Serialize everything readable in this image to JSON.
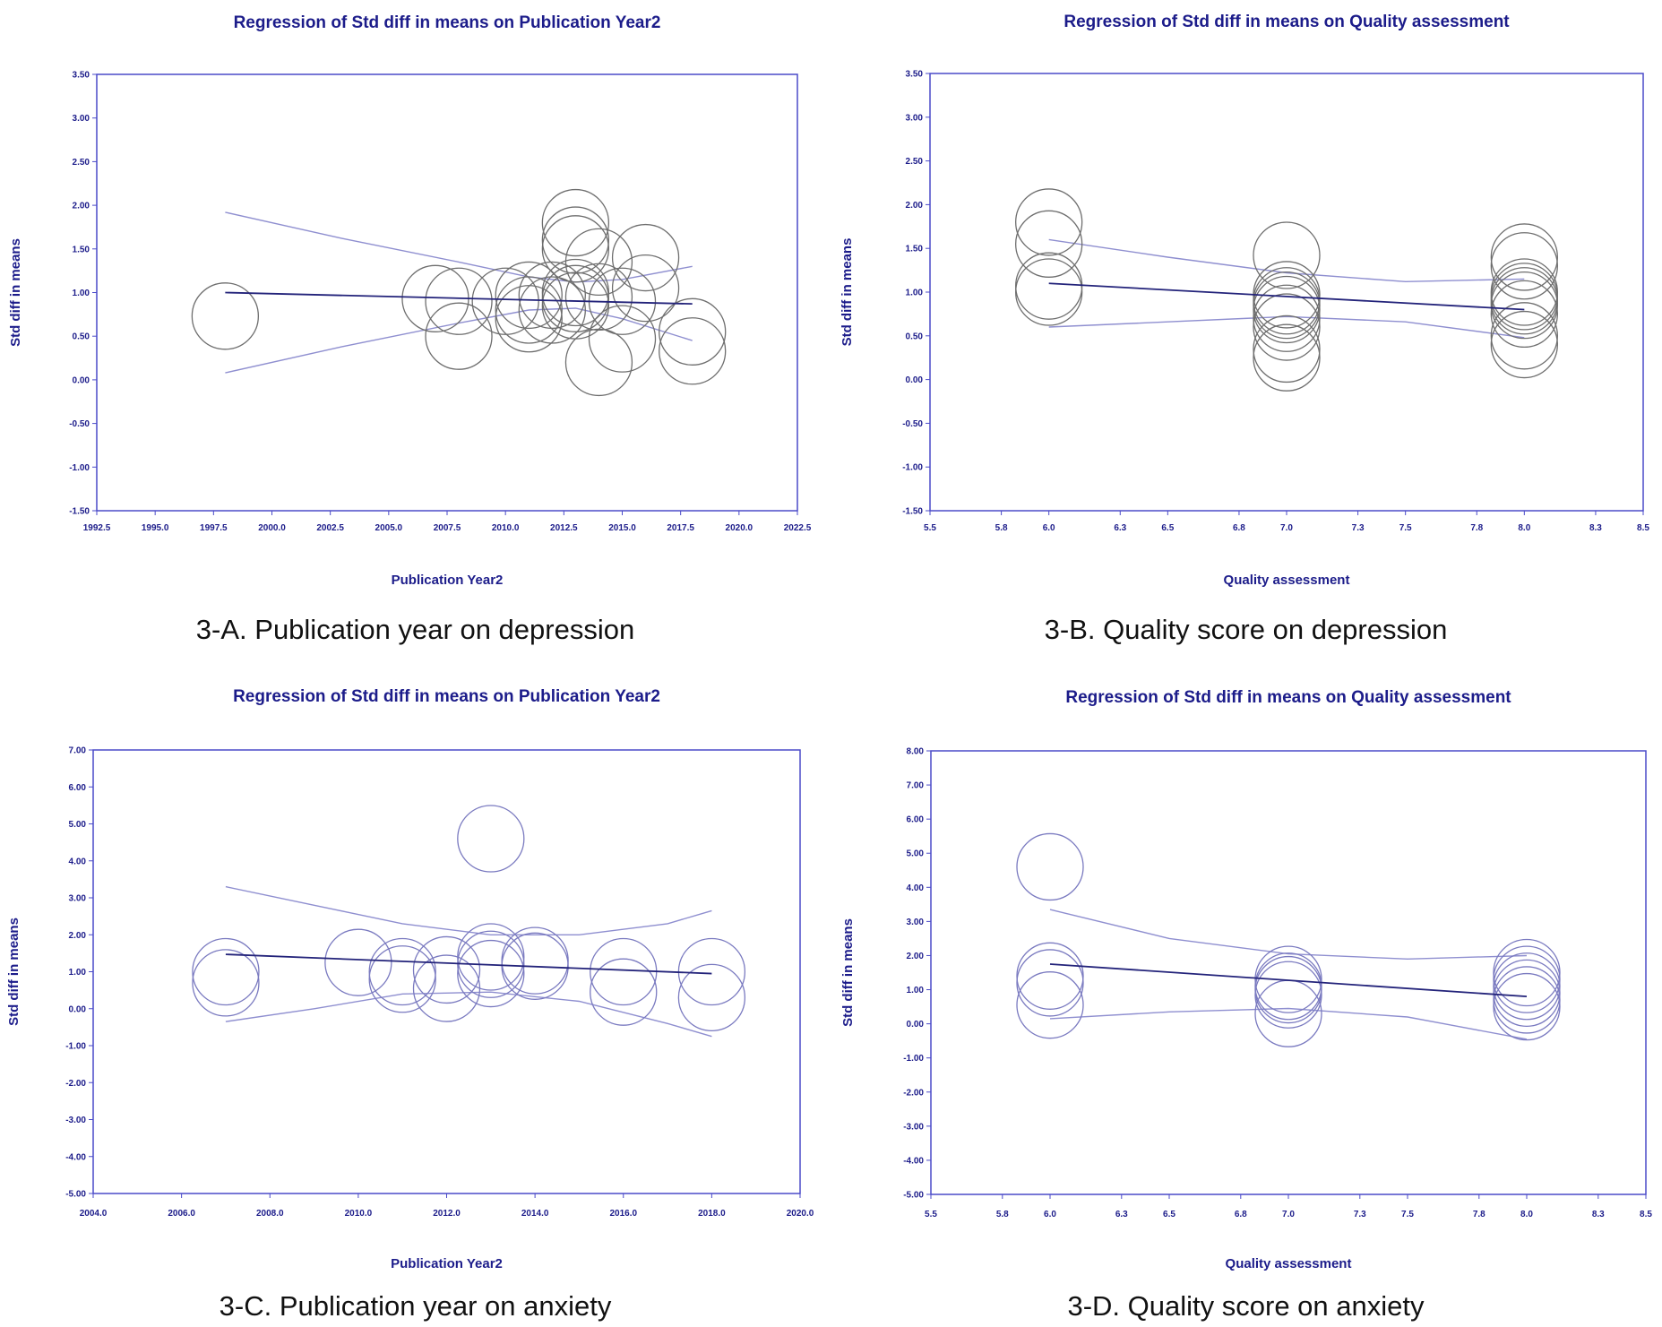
{
  "colors": {
    "axis": "#4a4ac8",
    "text": "#1c1c8a",
    "regression_line": "#23237a",
    "ci_line": "#8f8fd0",
    "bubble_gray": "#6e6e6e",
    "bubble_blue": "#7a7ac0"
  },
  "captions": [
    "3-A. Publication year on depression",
    "3-B. Quality score on depression",
    "3-C. Publication year on anxiety",
    "3-D. Quality score on anxiety"
  ],
  "chart_data": [
    {
      "type": "scatter",
      "title": "Regression of Std diff in means on Publication Year2",
      "xlabel": "Publication Year2",
      "ylabel": "Std diff in means",
      "xlim": [
        1992.5,
        2022.5
      ],
      "ylim": [
        -1.5,
        3.5
      ],
      "xticks": [
        "1992.5",
        "1995.0",
        "1997.5",
        "2000.0",
        "2002.5",
        "2005.0",
        "2007.5",
        "2010.0",
        "2012.5",
        "2015.0",
        "2017.5",
        "2020.0",
        "2022.5"
      ],
      "yticks": [
        "3.50",
        "3.00",
        "2.50",
        "2.00",
        "1.50",
        "1.00",
        "0.50",
        "0.00",
        "-0.50",
        "-1.00",
        "-1.50"
      ],
      "bubble_style": "gray",
      "points": [
        {
          "x": 1998,
          "y": 0.73
        },
        {
          "x": 2007,
          "y": 0.93
        },
        {
          "x": 2008,
          "y": 0.9
        },
        {
          "x": 2008,
          "y": 0.5
        },
        {
          "x": 2010,
          "y": 0.9
        },
        {
          "x": 2011,
          "y": 0.97
        },
        {
          "x": 2011,
          "y": 0.8
        },
        {
          "x": 2011,
          "y": 0.7
        },
        {
          "x": 2012,
          "y": 0.97
        },
        {
          "x": 2012,
          "y": 0.8
        },
        {
          "x": 2013,
          "y": 1.8
        },
        {
          "x": 2013,
          "y": 1.6
        },
        {
          "x": 2013,
          "y": 1.5
        },
        {
          "x": 2013,
          "y": 1.0
        },
        {
          "x": 2013,
          "y": 0.93
        },
        {
          "x": 2013,
          "y": 0.85
        },
        {
          "x": 2014,
          "y": 1.35
        },
        {
          "x": 2014,
          "y": 0.95
        },
        {
          "x": 2014,
          "y": 0.2
        },
        {
          "x": 2015,
          "y": 0.9
        },
        {
          "x": 2015,
          "y": 0.47
        },
        {
          "x": 2016,
          "y": 1.4
        },
        {
          "x": 2016,
          "y": 1.05
        },
        {
          "x": 2018,
          "y": 0.55
        },
        {
          "x": 2018,
          "y": 0.33
        }
      ],
      "regression": {
        "x": [
          1998,
          2018
        ],
        "y": [
          1.0,
          0.87
        ]
      },
      "ci_upper": {
        "x": [
          1998,
          2003,
          2008,
          2011,
          2013,
          2015,
          2018
        ],
        "y": [
          1.92,
          1.62,
          1.35,
          1.18,
          1.12,
          1.15,
          1.3
        ]
      },
      "ci_lower": {
        "x": [
          1998,
          2003,
          2008,
          2011,
          2013,
          2015,
          2018
        ],
        "y": [
          0.08,
          0.38,
          0.65,
          0.8,
          0.82,
          0.7,
          0.45
        ]
      }
    },
    {
      "type": "scatter",
      "title": "Regression of Std diff in means on Quality assessment",
      "xlabel": "Quality assessment",
      "ylabel": "Std diff in means",
      "xlim": [
        5.5,
        8.5
      ],
      "ylim": [
        -1.5,
        3.5
      ],
      "xticks": [
        "5.5",
        "5.8",
        "6.0",
        "6.3",
        "6.5",
        "6.8",
        "7.0",
        "7.3",
        "7.5",
        "7.8",
        "8.0",
        "8.3",
        "8.5"
      ],
      "yticks": [
        "3.50",
        "3.00",
        "2.50",
        "2.00",
        "1.50",
        "1.00",
        "0.50",
        "0.00",
        "-0.50",
        "-1.00",
        "-1.50"
      ],
      "bubble_style": "gray",
      "points": [
        {
          "x": 6.0,
          "y": 1.8
        },
        {
          "x": 6.0,
          "y": 1.55
        },
        {
          "x": 6.0,
          "y": 1.07
        },
        {
          "x": 6.0,
          "y": 1.0
        },
        {
          "x": 7.0,
          "y": 1.42
        },
        {
          "x": 7.0,
          "y": 0.97
        },
        {
          "x": 7.0,
          "y": 0.9
        },
        {
          "x": 7.0,
          "y": 0.85
        },
        {
          "x": 7.0,
          "y": 0.8
        },
        {
          "x": 7.0,
          "y": 0.7
        },
        {
          "x": 7.0,
          "y": 0.6
        },
        {
          "x": 7.0,
          "y": 0.35
        },
        {
          "x": 7.0,
          "y": 0.25
        },
        {
          "x": 8.0,
          "y": 1.4
        },
        {
          "x": 8.0,
          "y": 1.3
        },
        {
          "x": 8.0,
          "y": 1.0
        },
        {
          "x": 8.0,
          "y": 0.95
        },
        {
          "x": 8.0,
          "y": 0.9
        },
        {
          "x": 8.0,
          "y": 0.85
        },
        {
          "x": 8.0,
          "y": 0.75
        },
        {
          "x": 8.0,
          "y": 0.5
        },
        {
          "x": 8.0,
          "y": 0.4
        }
      ],
      "regression": {
        "x": [
          6.0,
          8.0
        ],
        "y": [
          1.1,
          0.8
        ]
      },
      "ci_upper": {
        "x": [
          6.0,
          6.5,
          7.0,
          7.5,
          8.0
        ],
        "y": [
          1.6,
          1.4,
          1.22,
          1.12,
          1.15
        ]
      },
      "ci_lower": {
        "x": [
          6.0,
          6.5,
          7.0,
          7.5,
          8.0
        ],
        "y": [
          0.6,
          0.66,
          0.72,
          0.66,
          0.48
        ]
      }
    },
    {
      "type": "scatter",
      "title": "Regression of Std diff in means on Publication Year2",
      "xlabel": "Publication Year2",
      "ylabel": "Std diff in means",
      "xlim": [
        2004.0,
        2020.0
      ],
      "ylim": [
        -5.0,
        7.0
      ],
      "xticks": [
        "2004.0",
        "2006.0",
        "2008.0",
        "2010.0",
        "2012.0",
        "2014.0",
        "2016.0",
        "2018.0",
        "2020.0"
      ],
      "yticks": [
        "7.00",
        "6.00",
        "5.00",
        "4.00",
        "3.00",
        "2.00",
        "1.00",
        "0.00",
        "-1.00",
        "-2.00",
        "-3.00",
        "-4.00",
        "-5.00"
      ],
      "bubble_style": "blue",
      "points": [
        {
          "x": 2007,
          "y": 1.0
        },
        {
          "x": 2007,
          "y": 0.7
        },
        {
          "x": 2010,
          "y": 1.25
        },
        {
          "x": 2011,
          "y": 1.0
        },
        {
          "x": 2011,
          "y": 0.8
        },
        {
          "x": 2012,
          "y": 1.05
        },
        {
          "x": 2012,
          "y": 0.55
        },
        {
          "x": 2013,
          "y": 4.6
        },
        {
          "x": 2013,
          "y": 1.4
        },
        {
          "x": 2013,
          "y": 1.2
        },
        {
          "x": 2013,
          "y": 0.95
        },
        {
          "x": 2014,
          "y": 1.3
        },
        {
          "x": 2014,
          "y": 1.15
        },
        {
          "x": 2016,
          "y": 1.0
        },
        {
          "x": 2016,
          "y": 0.45
        },
        {
          "x": 2018,
          "y": 1.0
        },
        {
          "x": 2018,
          "y": 0.3
        }
      ],
      "regression": {
        "x": [
          2007,
          2018
        ],
        "y": [
          1.47,
          0.95
        ]
      },
      "ci_upper": {
        "x": [
          2007,
          2009,
          2011,
          2013,
          2015,
          2017,
          2018
        ],
        "y": [
          3.3,
          2.8,
          2.3,
          2.0,
          2.0,
          2.3,
          2.65
        ]
      },
      "ci_lower": {
        "x": [
          2007,
          2009,
          2011,
          2013,
          2015,
          2017,
          2018
        ],
        "y": [
          -0.35,
          0.0,
          0.4,
          0.45,
          0.2,
          -0.4,
          -0.75
        ]
      }
    },
    {
      "type": "scatter",
      "title": "Regression of Std diff in means on Quality assessment",
      "xlabel": "Quality assessment",
      "ylabel": "Std diff in means",
      "xlim": [
        5.5,
        8.5
      ],
      "ylim": [
        -5.0,
        8.0
      ],
      "xticks": [
        "5.5",
        "5.8",
        "6.0",
        "6.3",
        "6.5",
        "6.8",
        "7.0",
        "7.3",
        "7.5",
        "7.8",
        "8.0",
        "8.3",
        "8.5"
      ],
      "yticks": [
        "8.00",
        "7.00",
        "6.00",
        "5.00",
        "4.00",
        "3.00",
        "2.00",
        "1.00",
        "0.00",
        "-1.00",
        "-2.00",
        "-3.00",
        "-4.00",
        "-5.00"
      ],
      "bubble_style": "blue",
      "points": [
        {
          "x": 6.0,
          "y": 4.6
        },
        {
          "x": 6.0,
          "y": 1.4
        },
        {
          "x": 6.0,
          "y": 1.2
        },
        {
          "x": 6.0,
          "y": 0.55
        },
        {
          "x": 7.0,
          "y": 1.3
        },
        {
          "x": 7.0,
          "y": 1.1
        },
        {
          "x": 7.0,
          "y": 1.0
        },
        {
          "x": 7.0,
          "y": 0.85
        },
        {
          "x": 7.0,
          "y": 0.3
        },
        {
          "x": 8.0,
          "y": 1.5
        },
        {
          "x": 8.0,
          "y": 1.3
        },
        {
          "x": 8.0,
          "y": 1.1
        },
        {
          "x": 8.0,
          "y": 0.9
        },
        {
          "x": 8.0,
          "y": 0.7
        },
        {
          "x": 8.0,
          "y": 0.5
        }
      ],
      "regression": {
        "x": [
          6.0,
          8.0
        ],
        "y": [
          1.75,
          0.8
        ]
      },
      "ci_upper": {
        "x": [
          6.0,
          6.5,
          7.0,
          7.5,
          8.0
        ],
        "y": [
          3.35,
          2.5,
          2.05,
          1.9,
          2.0
        ]
      },
      "ci_lower": {
        "x": [
          6.0,
          6.5,
          7.0,
          7.5,
          8.0
        ],
        "y": [
          0.15,
          0.35,
          0.45,
          0.2,
          -0.45
        ]
      }
    }
  ]
}
